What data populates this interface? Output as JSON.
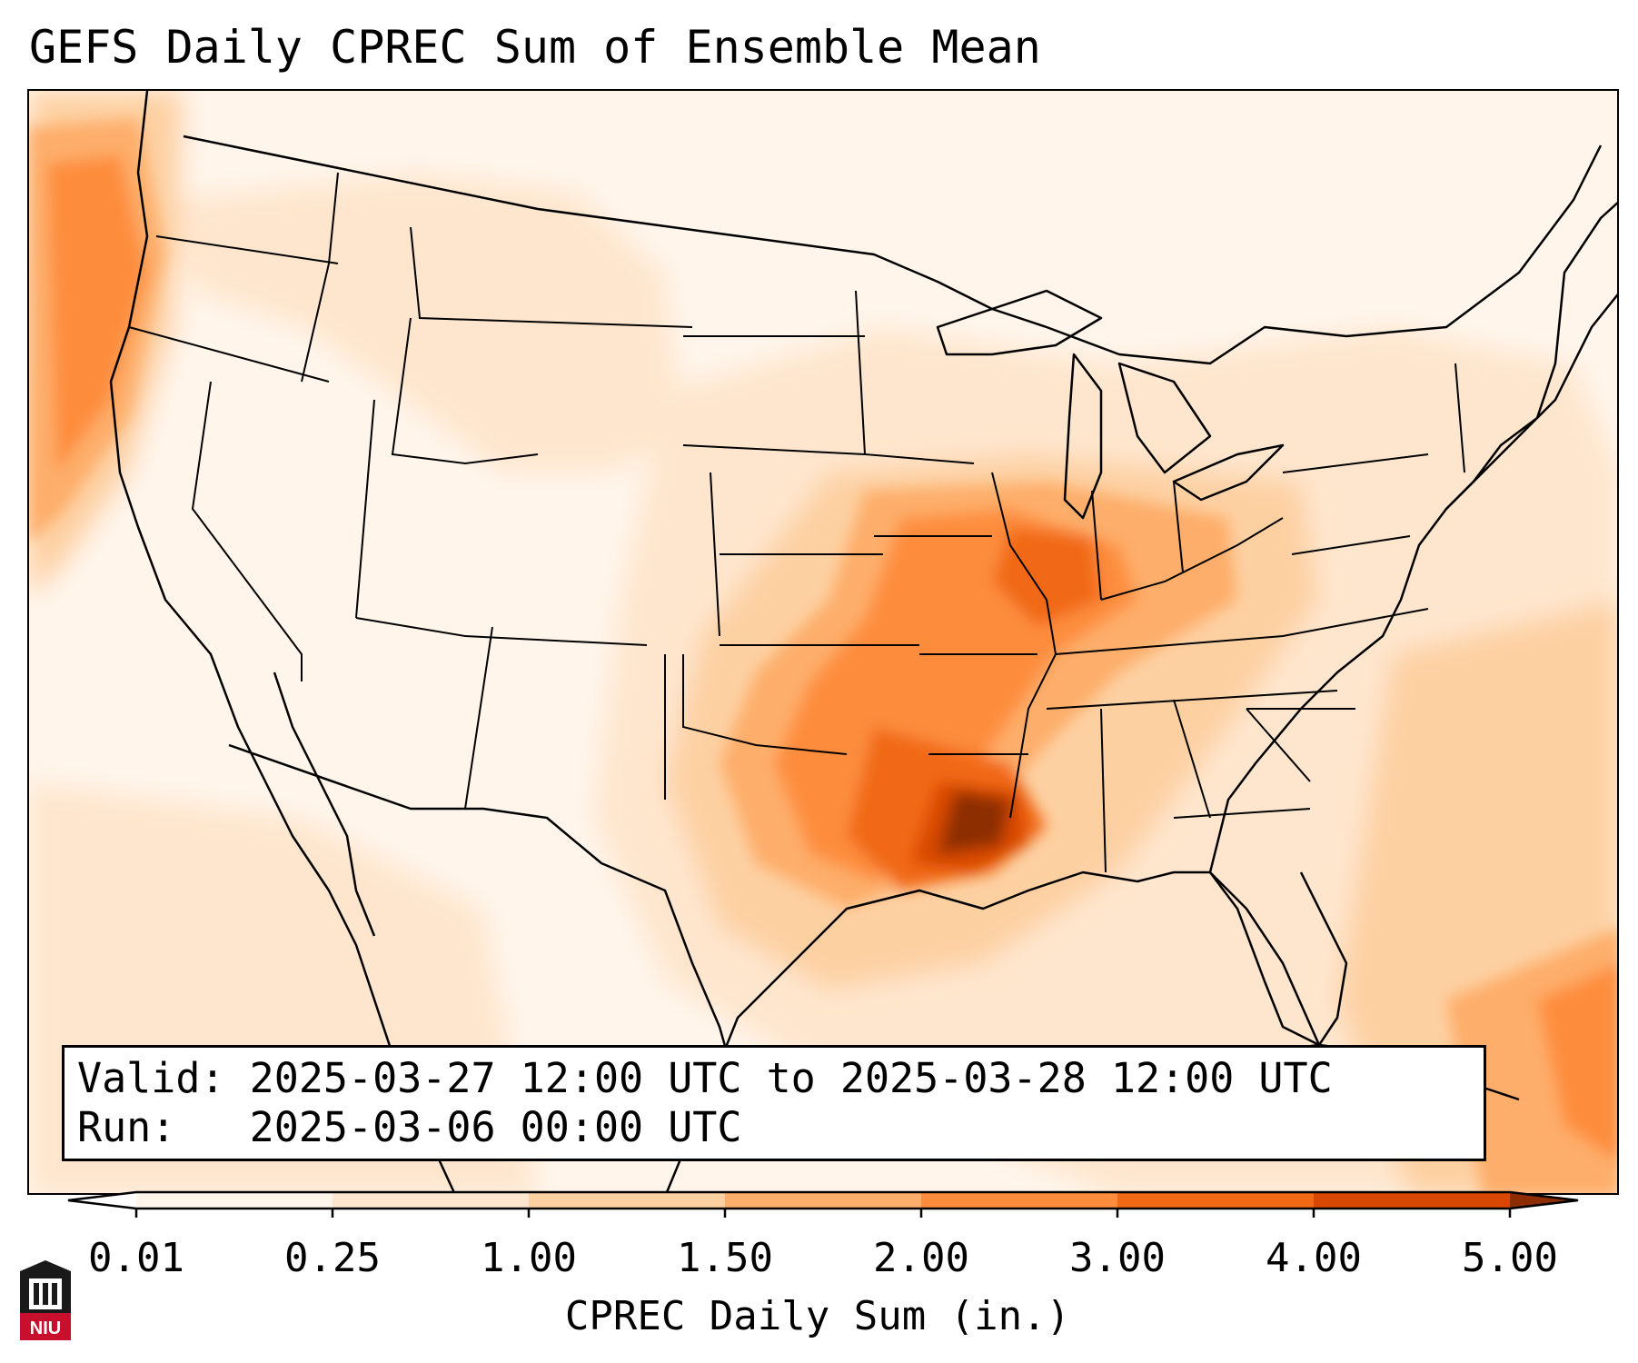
{
  "title": "GEFS Daily CPREC Sum of Ensemble Mean",
  "info": {
    "valid": "Valid: 2025-03-27 12:00 UTC to 2025-03-28 12:00 UTC",
    "run": "Run:   2025-03-06 00:00 UTC"
  },
  "colorbar": {
    "label": "CPREC Daily Sum (in.)",
    "ticks": [
      "0.01",
      "0.25",
      "1.00",
      "1.50",
      "2.00",
      "3.00",
      "4.00",
      "5.00"
    ],
    "colors": [
      "#fff5eb",
      "#fee6ce",
      "#fdd0a2",
      "#fdae6b",
      "#fd8d3c",
      "#f16913",
      "#d94801",
      "#8c2d04"
    ]
  },
  "logo": {
    "text": "NIU"
  },
  "colors": {
    "border": "#000000",
    "background": "#ffffff"
  }
}
